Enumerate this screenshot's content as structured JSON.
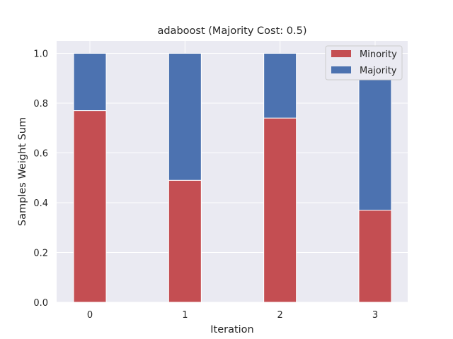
{
  "chart_data": {
    "type": "bar",
    "stacked": true,
    "title": "adaboost (Majority Cost: 0.5)",
    "xlabel": "Iteration",
    "ylabel": "Samples Weight Sum",
    "categories": [
      "0",
      "1",
      "2",
      "3"
    ],
    "series": [
      {
        "name": "Minority",
        "values": [
          0.77,
          0.49,
          0.74,
          0.37
        ],
        "color": "#c44e52"
      },
      {
        "name": "Majority",
        "values": [
          0.23,
          0.51,
          0.26,
          0.63
        ],
        "color": "#4c72b0"
      }
    ],
    "ylim": [
      0,
      1.0
    ],
    "yticks": [
      "0.0",
      "0.2",
      "0.4",
      "0.6",
      "0.8",
      "1.0"
    ],
    "grid": true,
    "legend_position": "top-right",
    "background": "#eaeaf2"
  }
}
